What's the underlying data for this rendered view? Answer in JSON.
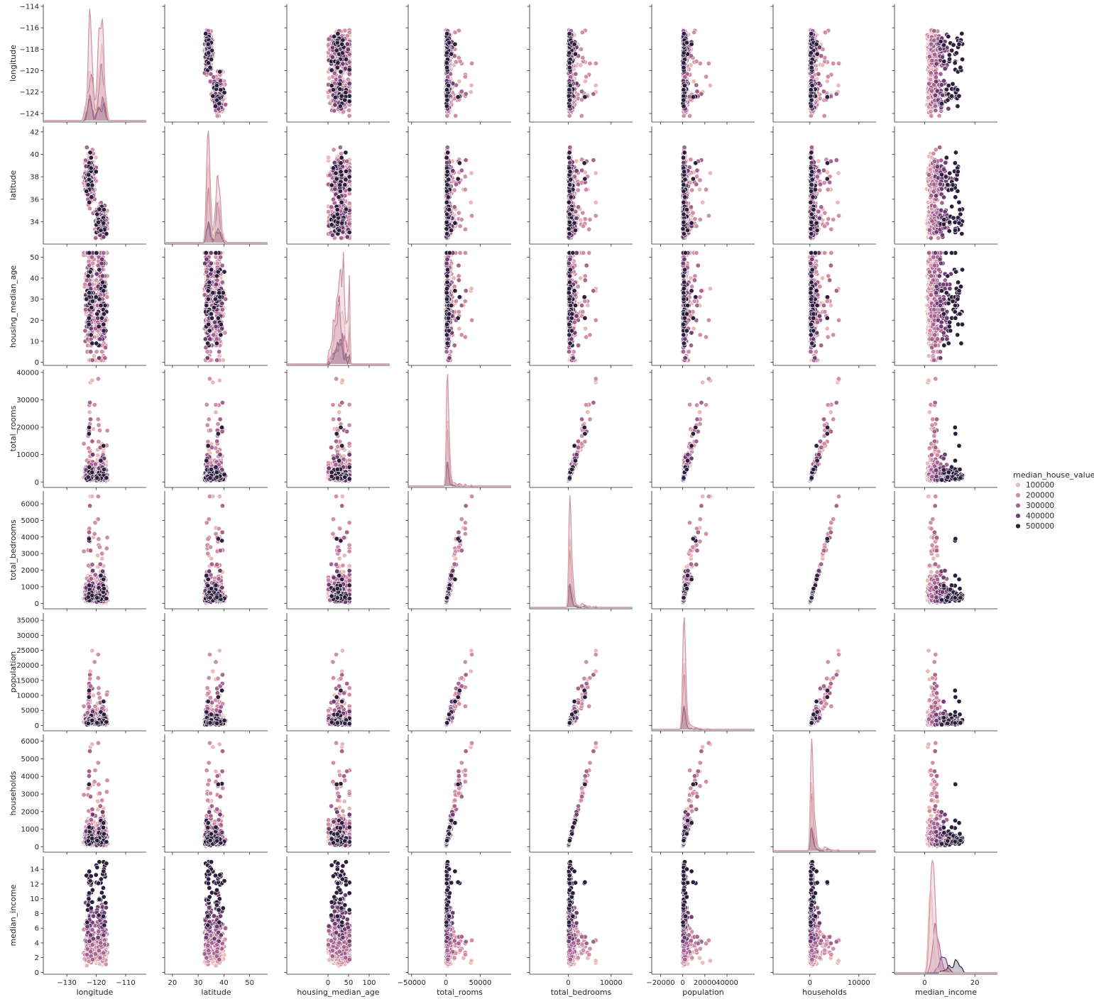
{
  "chart_data": {
    "type": "scatter",
    "subtype": "pairplot",
    "variables": [
      "longitude",
      "latitude",
      "housing_median_age",
      "total_rooms",
      "total_bedrooms",
      "population",
      "households",
      "median_income"
    ],
    "diag_kind": "kde",
    "ranges": {
      "longitude": [
        -138,
        -103
      ],
      "latitude": [
        17,
        57
      ],
      "housing_median_age": [
        -100,
        150
      ],
      "total_rooms": [
        -55000,
        95000
      ],
      "total_bedrooms": [
        -9000,
        15000
      ],
      "population": [
        -28000,
        65000
      ],
      "households": [
        -7500,
        13500
      ],
      "median_income": [
        -12,
        29
      ]
    },
    "data_ranges": {
      "longitude": [
        -124.35,
        -114.31
      ],
      "latitude": [
        32.54,
        41.95
      ],
      "housing_median_age": [
        1,
        52
      ],
      "total_rooms": [
        2,
        39320
      ],
      "total_bedrooms": [
        1,
        6445
      ],
      "population": [
        3,
        35682
      ],
      "households": [
        1,
        6082
      ],
      "median_income": [
        0.5,
        15.0
      ]
    },
    "ticks": {
      "longitude": [
        -130,
        -120,
        -110
      ],
      "latitude": [
        20,
        30,
        40,
        50
      ],
      "housing_median_age": [
        0,
        50,
        100
      ],
      "total_rooms": [
        -50000,
        0,
        50000
      ],
      "total_bedrooms": [
        0,
        10000
      ],
      "population": [
        -20000,
        0,
        20000,
        40000
      ],
      "households": [
        0,
        10000
      ],
      "median_income": [
        0,
        20
      ]
    },
    "y_ticks": {
      "longitude": [
        -114,
        -116,
        -118,
        -120,
        -122,
        -124
      ],
      "latitude": [
        34,
        36,
        38,
        40,
        42
      ],
      "housing_median_age": [
        0,
        10,
        20,
        30,
        40,
        50
      ],
      "total_rooms": [
        0,
        10000,
        20000,
        30000,
        40000
      ],
      "total_bedrooms": [
        0,
        1000,
        2000,
        3000,
        4000,
        5000,
        6000
      ],
      "population": [
        0,
        5000,
        10000,
        15000,
        20000,
        25000,
        30000,
        35000
      ],
      "households": [
        0,
        1000,
        2000,
        3000,
        4000,
        5000,
        6000
      ],
      "median_income": [
        0,
        2,
        4,
        6,
        8,
        10,
        12,
        14
      ]
    },
    "y_ranges": {
      "longitude": [
        -124.8,
        -113.8
      ],
      "latitude": [
        32.0,
        42.5
      ],
      "housing_median_age": [
        -1.5,
        54.5
      ],
      "total_rooms": [
        -2000,
        41000
      ],
      "total_bedrooms": [
        -330,
        6770
      ],
      "population": [
        -1800,
        37400
      ],
      "households": [
        -310,
        6390
      ],
      "median_income": [
        -0.25,
        15.75
      ]
    },
    "x_labels": [
      "longitude",
      "latitude",
      "housing_median_age",
      "total_rooms",
      "total_bedrooms",
      "population",
      "households",
      "median_income"
    ],
    "y_labels": [
      "longitude",
      "latitude",
      "housing_median_age",
      "total_rooms",
      "total_bedrooms",
      "population",
      "households",
      "median_income"
    ],
    "hue": "median_house_value",
    "legend": {
      "title": "median_house_value",
      "placement": "right",
      "entries": [
        {
          "label": "100000",
          "color": "#e8bbb6"
        },
        {
          "label": "200000",
          "color": "#d08fa6"
        },
        {
          "label": "300000",
          "color": "#a86491"
        },
        {
          "label": "400000",
          "color": "#6e3d71"
        },
        {
          "label": "500000",
          "color": "#2c1e3d"
        }
      ]
    },
    "grid": false
  }
}
